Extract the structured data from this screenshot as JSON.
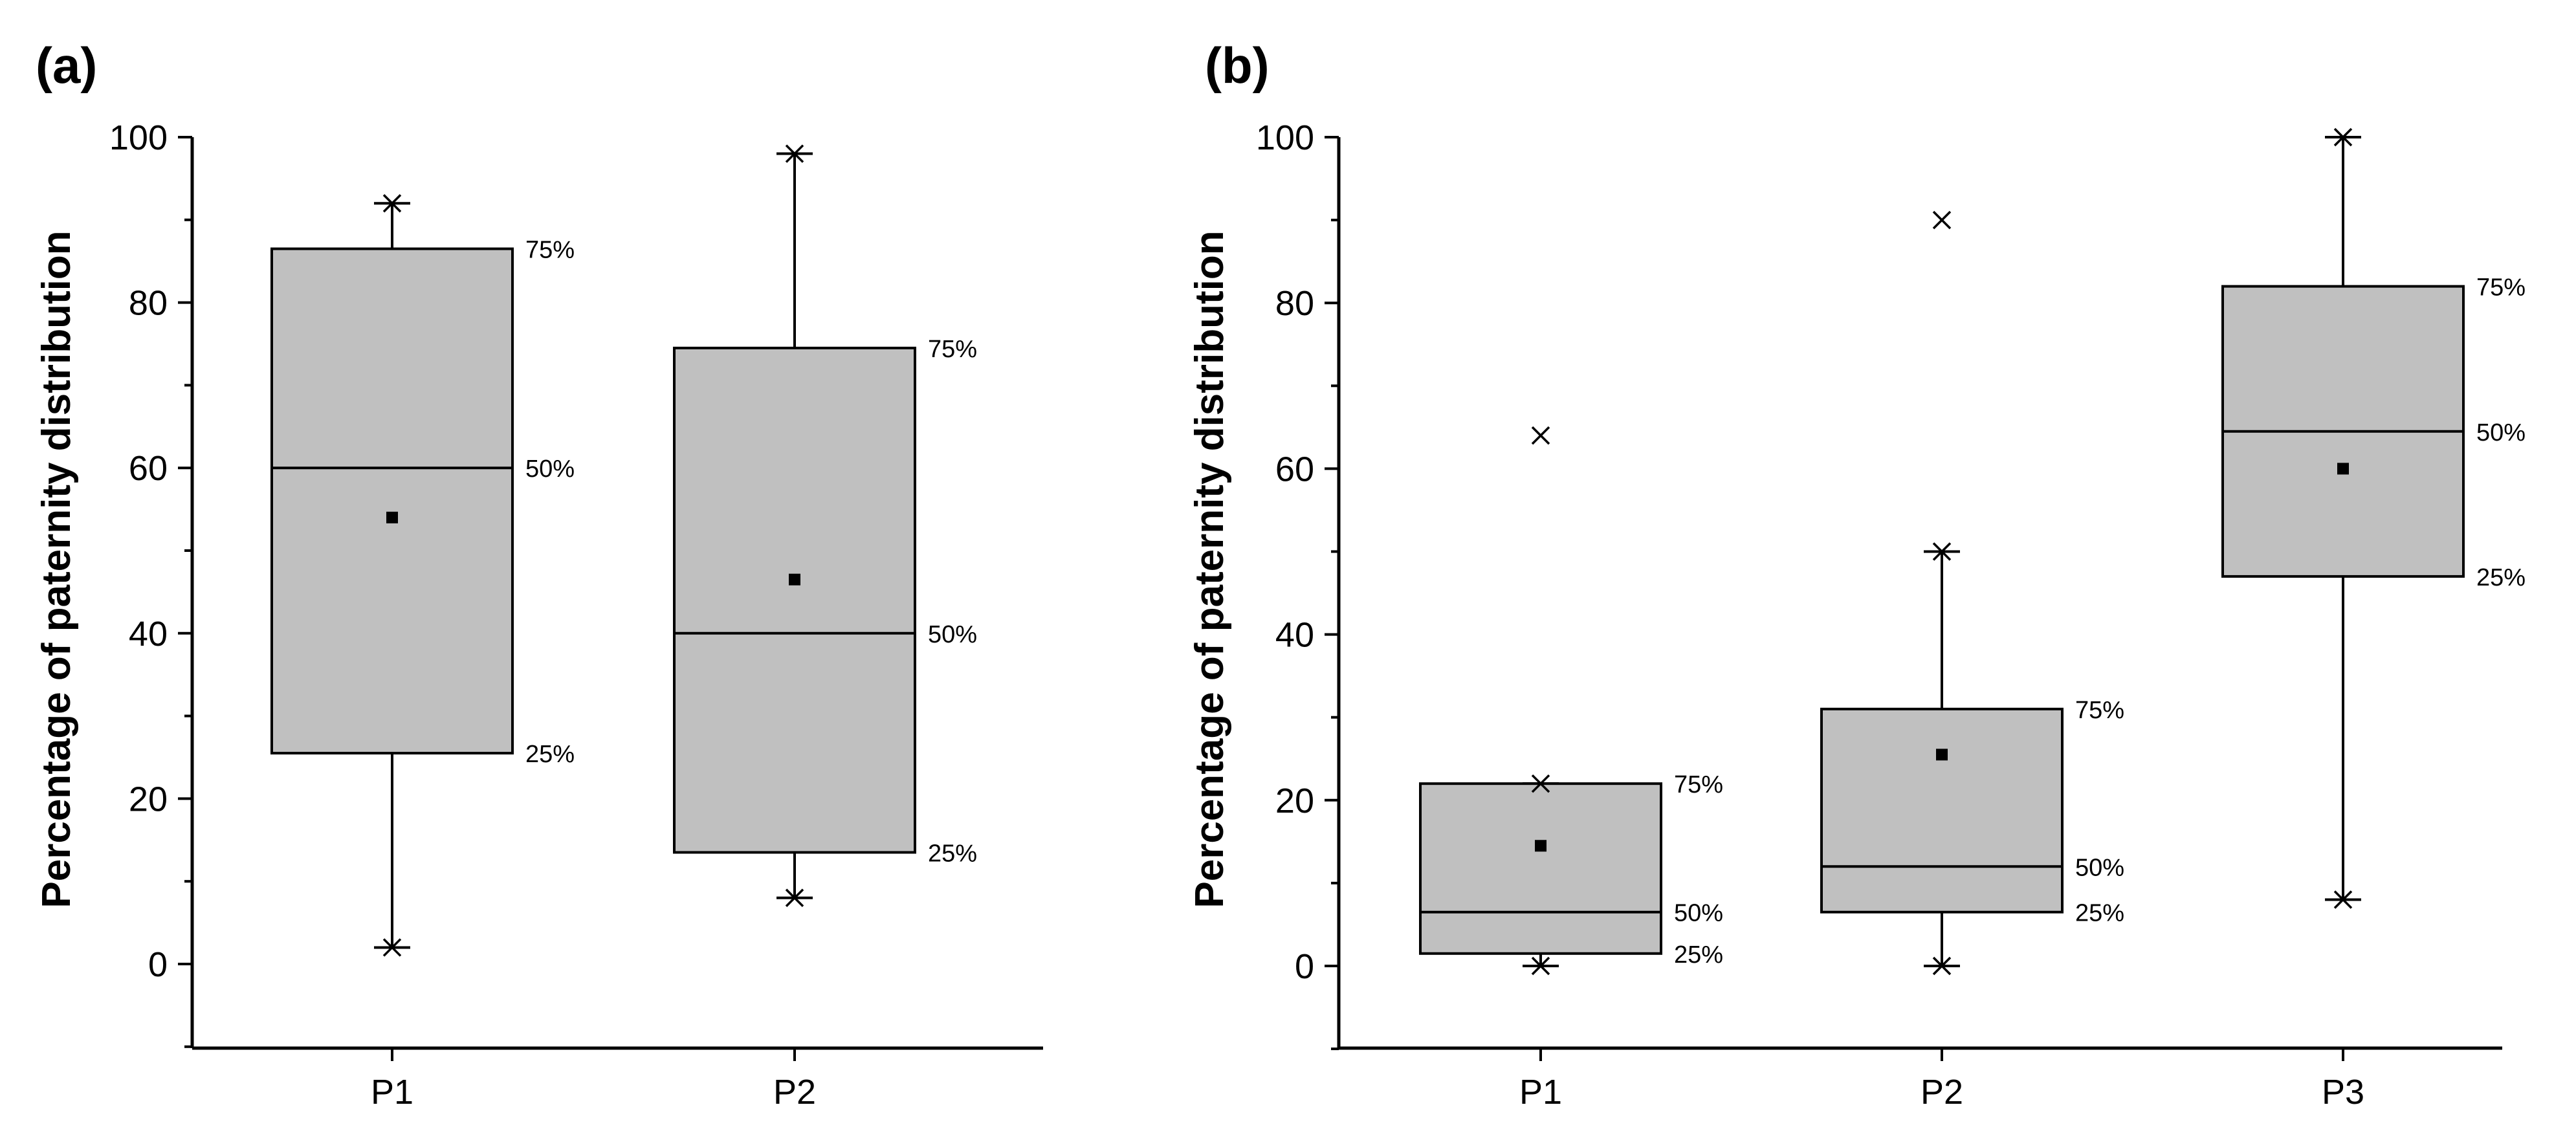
{
  "chart_data": [
    {
      "type": "box",
      "panel_label": "(a)",
      "ylabel": "Percentage of paternity distribution",
      "xlabel": "",
      "ylim": [
        -10,
        100
      ],
      "yticks": [
        0,
        20,
        40,
        60,
        80,
        100
      ],
      "categories": [
        "P1",
        "P2"
      ],
      "boxes": [
        {
          "name": "P1",
          "min": 2,
          "q1": 25.5,
          "median": 60,
          "q3": 86.5,
          "max": 92,
          "mean": 54,
          "outliers": []
        },
        {
          "name": "P2",
          "min": 8,
          "q1": 13.5,
          "median": 40,
          "q3": 74.5,
          "max": 98,
          "mean": 46.5,
          "outliers": []
        }
      ],
      "percentile_labels": {
        "q1": "25%",
        "median": "50%",
        "q3": "75%"
      }
    },
    {
      "type": "box",
      "panel_label": "(b)",
      "ylabel": "Percentage of paternity distribution",
      "xlabel": "",
      "ylim": [
        -10,
        100
      ],
      "yticks": [
        0,
        20,
        40,
        60,
        80,
        100
      ],
      "categories": [
        "P1",
        "P2",
        "P3"
      ],
      "boxes": [
        {
          "name": "P1",
          "min": 0,
          "q1": 1.5,
          "median": 6.5,
          "q3": 22,
          "max": 22,
          "mean": 14.5,
          "outliers": [
            64
          ]
        },
        {
          "name": "P2",
          "min": 0,
          "q1": 6.5,
          "median": 12,
          "q3": 31,
          "max": 50,
          "mean": 25.5,
          "outliers": [
            90
          ]
        },
        {
          "name": "P3",
          "min": 8,
          "q1": 47,
          "median": 64.5,
          "q3": 82,
          "max": 100,
          "mean": 60,
          "outliers": []
        }
      ],
      "percentile_labels": {
        "q1": "25%",
        "median": "50%",
        "q3": "75%"
      }
    }
  ],
  "colors": {
    "box_fill": "#c0c0c0",
    "stroke": "#000000",
    "background": "#ffffff"
  }
}
